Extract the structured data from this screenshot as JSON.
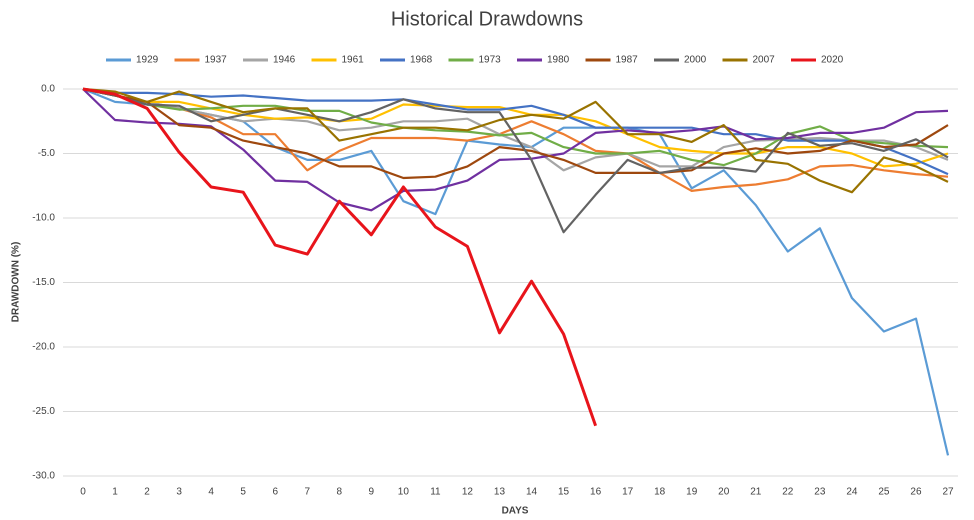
{
  "chart_data": {
    "type": "line",
    "title": "Historical Drawdowns",
    "x_label": "DAYS",
    "y_label": "DRAWDOWN (%)",
    "x": [
      0,
      1,
      2,
      3,
      4,
      5,
      6,
      7,
      8,
      9,
      10,
      11,
      12,
      13,
      14,
      15,
      16,
      17,
      18,
      19,
      20,
      21,
      22,
      23,
      24,
      25,
      26,
      27
    ],
    "xlim": [
      0,
      27
    ],
    "xticks": [
      0,
      1,
      2,
      3,
      4,
      5,
      6,
      7,
      8,
      9,
      10,
      11,
      12,
      13,
      14,
      15,
      16,
      17,
      18,
      19,
      20,
      21,
      22,
      23,
      24,
      25,
      26,
      27
    ],
    "ylim": [
      -30,
      0
    ],
    "yticks": [
      {
        "value": 0,
        "label": "0.0"
      },
      {
        "value": -5,
        "label": "-5.0"
      },
      {
        "value": -10,
        "label": "-10.0"
      },
      {
        "value": -15,
        "label": "-15.0"
      },
      {
        "value": -20,
        "label": "-20.0"
      },
      {
        "value": -25,
        "label": "-25.0"
      },
      {
        "value": -30,
        "label": "-30.0"
      }
    ],
    "grid": true,
    "legend": "top",
    "series": [
      {
        "name": "1929",
        "color": "#5b9bd5",
        "values": [
          0,
          -1,
          -1.2,
          -1.5,
          -2,
          -2.5,
          -4.5,
          -5.5,
          -5.5,
          -4.8,
          -8.7,
          -9.7,
          -4,
          -4.3,
          -4.5,
          -3,
          -3,
          -3,
          -3.5,
          -7.7,
          -6.3,
          -9,
          -12.6,
          -10.8,
          -16.2,
          -18.8,
          -17.8,
          -28.4
        ]
      },
      {
        "name": "1937",
        "color": "#ed7d31",
        "values": [
          0,
          -0.5,
          -1,
          -1.5,
          -2.2,
          -3.5,
          -3.5,
          -6.3,
          -4.8,
          -3.8,
          -3.8,
          -3.8,
          -4,
          -3.5,
          -2.5,
          -3.5,
          -4.8,
          -5,
          -6.5,
          -7.9,
          -7.6,
          -7.4,
          -7,
          -6,
          -5.9,
          -6.3,
          -6.6,
          -6.8
        ]
      },
      {
        "name": "1946",
        "color": "#a5a5a5",
        "values": [
          0,
          -0.5,
          -1,
          -1.5,
          -2,
          -2.5,
          -2.3,
          -2.5,
          -3.2,
          -3,
          -2.5,
          -2.5,
          -2.3,
          -3.5,
          -4.5,
          -6.3,
          -5.3,
          -5,
          -6,
          -6,
          -4.5,
          -4,
          -3.9,
          -3.8,
          -4,
          -4,
          -4.5,
          -5.5
        ]
      },
      {
        "name": "1961",
        "color": "#ffc000",
        "values": [
          0,
          -0.5,
          -1,
          -1,
          -1.5,
          -2,
          -2.3,
          -2.2,
          -2.5,
          -2.3,
          -1.2,
          -1.3,
          -1.4,
          -1.4,
          -2,
          -2,
          -2.5,
          -3.5,
          -4.5,
          -4.8,
          -5,
          -5,
          -4.5,
          -4.5,
          -5,
          -6,
          -5.8,
          -5
        ]
      },
      {
        "name": "1968",
        "color": "#4472c4",
        "values": [
          0,
          -0.3,
          -0.3,
          -0.4,
          -0.6,
          -0.5,
          -0.7,
          -0.9,
          -0.9,
          -0.9,
          -0.8,
          -1.2,
          -1.6,
          -1.6,
          -1.3,
          -2,
          -3,
          -3,
          -3,
          -3,
          -3.5,
          -3.5,
          -4,
          -4,
          -4,
          -4.5,
          -5.5,
          -6.6
        ]
      },
      {
        "name": "1973",
        "color": "#70ad47",
        "values": [
          0,
          -0.5,
          -1.2,
          -1.6,
          -1.5,
          -1.3,
          -1.3,
          -1.7,
          -1.7,
          -2.6,
          -3,
          -3.2,
          -3.3,
          -3.6,
          -3.4,
          -4.5,
          -5,
          -5,
          -4.8,
          -5.5,
          -5.9,
          -5,
          -3.5,
          -2.9,
          -4,
          -4.2,
          -4.4,
          -4.5
        ]
      },
      {
        "name": "1980",
        "color": "#7030a0",
        "values": [
          0,
          -2.4,
          -2.6,
          -2.7,
          -2.9,
          -4.7,
          -7.1,
          -7.2,
          -8.8,
          -9.4,
          -7.9,
          -7.8,
          -7.1,
          -5.5,
          -5.4,
          -5,
          -3.4,
          -3.2,
          -3.4,
          -3.2,
          -2.9,
          -3.9,
          -3.8,
          -3.4,
          -3.4,
          -3,
          -1.8,
          -1.7
        ]
      },
      {
        "name": "1987",
        "color": "#9e480e",
        "values": [
          0,
          -0.5,
          -1,
          -2.8,
          -3,
          -4,
          -4.5,
          -5,
          -6,
          -6,
          -6.9,
          -6.8,
          -6,
          -4.5,
          -4.8,
          -5.5,
          -6.5,
          -6.5,
          -6.5,
          -6.3,
          -5,
          -4.6,
          -5,
          -4.8,
          -4,
          -4.5,
          -4.3,
          -2.8
        ]
      },
      {
        "name": "2000",
        "color": "#636363",
        "values": [
          0,
          -0.5,
          -1.2,
          -1.3,
          -2.5,
          -2,
          -1.5,
          -2,
          -2.5,
          -1.8,
          -0.8,
          -1.5,
          -1.8,
          -1.8,
          -5.5,
          -11.1,
          -8.2,
          -5.5,
          -6.5,
          -6.1,
          -6.1,
          -6.4,
          -3.4,
          -4.4,
          -4.2,
          -4.8,
          -3.9,
          -5.3
        ]
      },
      {
        "name": "2007",
        "color": "#997300",
        "values": [
          0,
          -0.2,
          -1,
          -0.2,
          -1,
          -1.8,
          -1.5,
          -1.5,
          -4,
          -3.5,
          -3,
          -3,
          -3.2,
          -2.4,
          -2,
          -2.3,
          -1,
          -3.5,
          -3.5,
          -4.1,
          -2.8,
          -5.5,
          -5.8,
          -7.1,
          -8,
          -5.3,
          -6,
          -7.2
        ]
      },
      {
        "name": "2020",
        "color": "#e8141b",
        "values": [
          0,
          -0.4,
          -1.5,
          -4.9,
          -7.6,
          -8,
          -12.1,
          -12.8,
          -8.7,
          -11.3,
          -7.6,
          -10.7,
          -12.2,
          -18.9,
          -14.9,
          -19,
          -26.1,
          null,
          null,
          null,
          null,
          null,
          null,
          null,
          null,
          null,
          null,
          null
        ]
      }
    ]
  }
}
